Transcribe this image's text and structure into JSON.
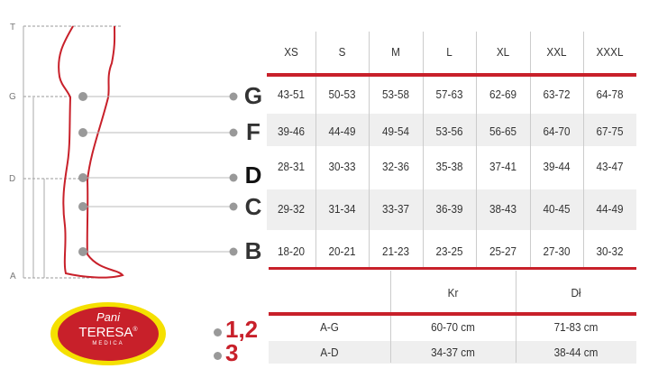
{
  "diagram": {
    "axis_labels": [
      "T",
      "G",
      "D",
      "A"
    ],
    "measure_points": [
      "G",
      "F",
      "D",
      "C",
      "B"
    ]
  },
  "size_table": {
    "sizes": [
      "XS",
      "S",
      "M",
      "L",
      "XL",
      "XXL",
      "XXXL"
    ],
    "rows": [
      {
        "point": "G",
        "values": [
          "43-51",
          "50-53",
          "53-58",
          "57-63",
          "62-69",
          "63-72",
          "64-78"
        ]
      },
      {
        "point": "F",
        "values": [
          "39-46",
          "44-49",
          "49-54",
          "53-56",
          "56-65",
          "64-70",
          "67-75"
        ]
      },
      {
        "point": "D",
        "values": [
          "28-31",
          "30-33",
          "32-36",
          "35-38",
          "37-41",
          "39-44",
          "43-47"
        ]
      },
      {
        "point": "C",
        "values": [
          "29-32",
          "31-34",
          "33-37",
          "36-39",
          "38-43",
          "40-45",
          "44-49"
        ]
      },
      {
        "point": "B",
        "values": [
          "18-20",
          "20-21",
          "21-23",
          "23-25",
          "25-27",
          "27-30",
          "30-32"
        ]
      }
    ]
  },
  "length_table": {
    "headers": [
      "",
      "Kr",
      "Dł"
    ],
    "rows": [
      {
        "label": "A-G",
        "values": [
          "60-70 cm",
          "71-83 cm"
        ]
      },
      {
        "label": "A-D",
        "values": [
          "34-37 cm",
          "38-44 cm"
        ]
      }
    ],
    "markers": [
      "1,2",
      "3"
    ]
  },
  "logo": {
    "line1": "Pani",
    "line2": "TERESA",
    "line3": "MEDICA",
    "reg": "®"
  },
  "colors": {
    "accent": "#c8202a",
    "logo_yellow": "#f5e000",
    "stripe": "#efefef"
  }
}
